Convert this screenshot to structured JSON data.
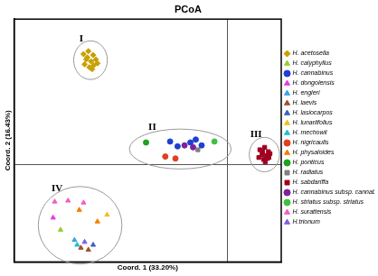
{
  "chart_data": {
    "type": "scatter",
    "title": "PCoA",
    "x_label": "Coord. 1 (33.20%)",
    "y_label": "Coord. 2 (16.43%)",
    "xlim": [
      -0.4,
      0.1
    ],
    "ylim": [
      -0.2,
      0.3
    ],
    "xticks": [
      0
    ],
    "yticks": [
      0
    ],
    "tick_labels": false,
    "grid": true,
    "legend": "right",
    "series": [
      {
        "name": "H. acetosella",
        "color": "#c8a000",
        "marker": "diamond",
        "x": [
          -0.27,
          -0.261,
          -0.252,
          -0.265,
          -0.256,
          -0.247,
          -0.268,
          -0.259,
          -0.251,
          -0.244,
          -0.263,
          -0.254
        ],
        "values": [
          0.228,
          0.234,
          0.226,
          0.217,
          0.213,
          0.217,
          0.207,
          0.201,
          0.205,
          0.209,
          0.221,
          0.197
        ]
      },
      {
        "name": "H. calyphyllus",
        "color": "#9acd32",
        "marker": "triangle",
        "x": [
          -0.313
        ],
        "values": [
          -0.134
        ]
      },
      {
        "name": "H. cannabinus",
        "color": "#1f3fd0",
        "marker": "circle",
        "x": [
          -0.108,
          -0.094,
          -0.07,
          -0.06,
          -0.049
        ],
        "values": [
          0.048,
          0.038,
          0.046,
          0.052,
          0.04
        ]
      },
      {
        "name": "H. dongolensis",
        "color": "#e040e0",
        "marker": "triangle",
        "x": [
          -0.327
        ],
        "values": [
          -0.109
        ]
      },
      {
        "name": "H. engleri",
        "color": "#40a0e0",
        "marker": "triangle",
        "x": [
          -0.287
        ],
        "values": [
          -0.155
        ]
      },
      {
        "name": "H. laevis",
        "color": "#a0522d",
        "marker": "triangle",
        "x": [
          -0.275,
          -0.261
        ],
        "values": [
          -0.171,
          -0.175
        ]
      },
      {
        "name": "H. lasiocarpos",
        "color": "#4060c0",
        "marker": "triangle",
        "x": [
          -0.252
        ],
        "values": [
          -0.165
        ]
      },
      {
        "name": "H. lunariifolius",
        "color": "#f0c020",
        "marker": "triangle",
        "x": [
          -0.226
        ],
        "values": [
          -0.103
        ]
      },
      {
        "name": "H. mechowii",
        "color": "#20c0d0",
        "marker": "triangle",
        "x": [
          -0.282
        ],
        "values": [
          -0.165
        ]
      },
      {
        "name": "H. nigricaulis",
        "color": "#e04020",
        "marker": "circle",
        "x": [
          -0.117,
          -0.098
        ],
        "values": [
          0.017,
          0.013
        ]
      },
      {
        "name": "H. physaloides",
        "color": "#f08000",
        "marker": "triangle",
        "x": [
          -0.278,
          -0.244
        ],
        "values": [
          -0.093,
          -0.117
        ]
      },
      {
        "name": "H. ponticus",
        "color": "#20a020",
        "marker": "circle",
        "x": [
          -0.153
        ],
        "values": [
          0.046
        ]
      },
      {
        "name": "H. radiatus",
        "color": "#808080",
        "marker": "square",
        "x": [
          -0.056
        ],
        "values": [
          0.031
        ]
      },
      {
        "name": "H. sabdariffa",
        "color": "#a00020",
        "marker": "square",
        "x": [
          0.06,
          0.069,
          0.076,
          0.064,
          0.072,
          0.079,
          0.058,
          0.067,
          0.074,
          0.065,
          0.07,
          0.077
        ],
        "values": [
          0.031,
          0.036,
          0.027,
          0.021,
          0.019,
          0.023,
          0.015,
          0.011,
          0.013,
          0.027,
          0.006,
          0.015
        ]
      },
      {
        "name": "H. cannabinus subsp. cannabinus",
        "color": "#8020a0",
        "marker": "circle",
        "x": [
          -0.081,
          -0.065
        ],
        "values": [
          0.04,
          0.036
        ]
      },
      {
        "name": "H. striatus subsp. striatus",
        "color": "#40c040",
        "marker": "circle",
        "x": [
          -0.025
        ],
        "values": [
          0.048
        ]
      },
      {
        "name": "H. surattensis",
        "color": "#f060c0",
        "marker": "triangle",
        "x": [
          -0.324,
          -0.299,
          -0.27
        ],
        "values": [
          -0.076,
          -0.074,
          -0.078
        ]
      },
      {
        "name": "H.trionum",
        "color": "#8060e0",
        "marker": "triangle",
        "x": [
          -0.268
        ],
        "values": [
          -0.159
        ]
      }
    ],
    "clusters": [
      {
        "label": "I",
        "members": [
          "H. acetosella"
        ]
      },
      {
        "label": "II",
        "members": [
          "H. cannabinus",
          "H. nigricaulis",
          "H. ponticus",
          "H. radiatus",
          "H. cannabinus subsp. cannabinus",
          "H. striatus subsp. striatus"
        ]
      },
      {
        "label": "III",
        "members": [
          "H. sabdariffa"
        ]
      },
      {
        "label": "IV",
        "members": [
          "H. calyphyllus",
          "H. dongolensis",
          "H. engleri",
          "H. laevis",
          "H. lasiocarpos",
          "H. lunariifolius",
          "H. mechowii",
          "H. physaloides",
          "H. surattensis",
          "H.trionum"
        ]
      }
    ]
  }
}
